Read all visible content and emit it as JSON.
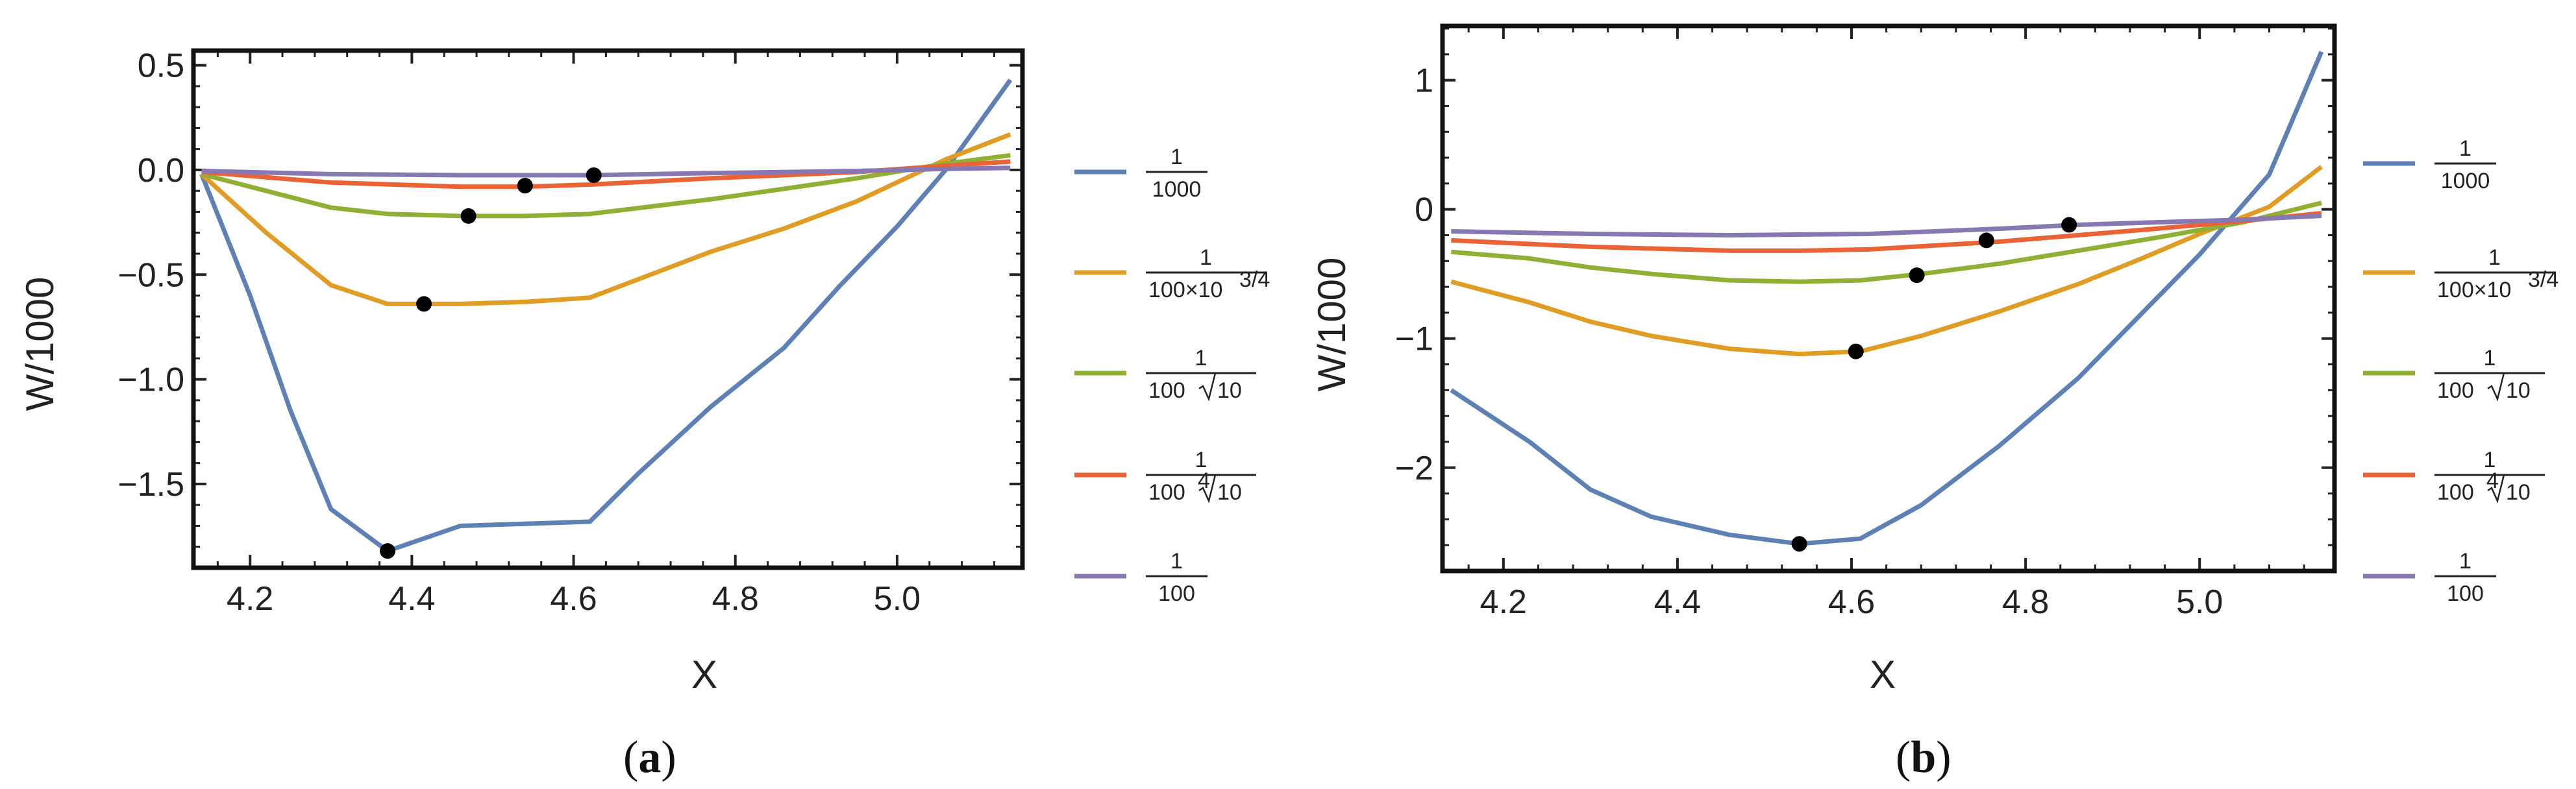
{
  "chart_data": [
    {
      "type": "line",
      "caption": "(a)",
      "caption_letter": "a",
      "xlabel": "X",
      "ylabel": "W/1000",
      "xlim": [
        4.13,
        5.155
      ],
      "ylim": [
        -1.9,
        0.57
      ],
      "xticks": [
        4.2,
        4.4,
        4.6,
        4.8,
        5.0
      ],
      "xtick_labels": [
        "4.2",
        "4.4",
        "4.6",
        "4.8",
        "5.0"
      ],
      "yticks": [
        0.5,
        0.0,
        -0.5,
        -1.0,
        -1.5
      ],
      "ytick_labels": [
        "0.5",
        "0.0",
        "−0.5",
        "−1.0",
        "−1.5"
      ],
      "series": [
        {
          "name": "1/1000",
          "color": "#5e81b5",
          "x": [
            4.14,
            4.2,
            4.25,
            4.3,
            4.37,
            4.46,
            4.54,
            4.62,
            4.68,
            4.77,
            4.86,
            4.93,
            5.0,
            5.06,
            5.14
          ],
          "y": [
            -0.02,
            -0.6,
            -1.15,
            -1.62,
            -1.82,
            -1.7,
            -1.69,
            -1.68,
            -1.45,
            -1.13,
            -0.85,
            -0.55,
            -0.27,
            0.0,
            0.43
          ],
          "marker": {
            "x": 4.37,
            "y": -1.82
          }
        },
        {
          "name": "1/(100×10^(3/4))",
          "color": "#e19c24",
          "x": [
            4.14,
            4.22,
            4.3,
            4.37,
            4.46,
            4.54,
            4.62,
            4.77,
            4.86,
            4.95,
            5.06,
            5.14
          ],
          "y": [
            -0.02,
            -0.3,
            -0.55,
            -0.64,
            -0.64,
            -0.63,
            -0.61,
            -0.39,
            -0.28,
            -0.15,
            0.05,
            0.17
          ],
          "marker": {
            "x": 4.415,
            "y": -0.64
          }
        },
        {
          "name": "1/(100√10)",
          "color": "#8fb032",
          "x": [
            4.14,
            4.22,
            4.3,
            4.37,
            4.46,
            4.54,
            4.62,
            4.77,
            4.86,
            4.95,
            5.06,
            5.14
          ],
          "y": [
            -0.02,
            -0.1,
            -0.18,
            -0.21,
            -0.22,
            -0.22,
            -0.21,
            -0.14,
            -0.09,
            -0.04,
            0.03,
            0.07
          ],
          "marker": {
            "x": 4.47,
            "y": -0.22
          }
        },
        {
          "name": "1/(100·10^(1/4))",
          "color": "#eb6235",
          "x": [
            4.14,
            4.3,
            4.46,
            4.54,
            4.62,
            4.77,
            4.95,
            5.06,
            5.14
          ],
          "y": [
            -0.01,
            -0.06,
            -0.08,
            -0.08,
            -0.07,
            -0.04,
            -0.01,
            0.02,
            0.04
          ],
          "marker": {
            "x": 4.54,
            "y": -0.075
          }
        },
        {
          "name": "1/100",
          "color": "#8778b3",
          "x": [
            4.14,
            4.3,
            4.46,
            4.62,
            4.77,
            4.95,
            5.06,
            5.14
          ],
          "y": [
            -0.005,
            -0.02,
            -0.025,
            -0.025,
            -0.015,
            -0.005,
            0.005,
            0.01
          ],
          "marker": {
            "x": 4.625,
            "y": -0.025
          }
        }
      ]
    },
    {
      "type": "line",
      "caption": "(b)",
      "caption_letter": "b",
      "xlabel": "X",
      "ylabel": "W/1000",
      "xlim": [
        4.13,
        5.155
      ],
      "ylim": [
        -2.8,
        1.42
      ],
      "xticks": [
        4.2,
        4.4,
        4.6,
        4.8,
        5.0
      ],
      "xtick_labels": [
        "4.2",
        "4.4",
        "4.6",
        "4.8",
        "5.0"
      ],
      "yticks": [
        1,
        0,
        -1,
        -2
      ],
      "ytick_labels": [
        "1",
        "0",
        "−1",
        "−2"
      ],
      "series": [
        {
          "name": "1/1000",
          "color": "#5e81b5",
          "x": [
            4.14,
            4.23,
            4.3,
            4.37,
            4.46,
            4.54,
            4.61,
            4.68,
            4.77,
            4.86,
            4.93,
            5.0,
            5.08,
            5.14
          ],
          "y": [
            -1.4,
            -1.8,
            -2.17,
            -2.38,
            -2.52,
            -2.59,
            -2.55,
            -2.29,
            -1.83,
            -1.31,
            -0.83,
            -0.35,
            0.27,
            1.22
          ],
          "marker": {
            "x": 4.54,
            "y": -2.59
          }
        },
        {
          "name": "1/(100×10^(3/4))",
          "color": "#e19c24",
          "x": [
            4.14,
            4.23,
            4.3,
            4.37,
            4.46,
            4.54,
            4.61,
            4.68,
            4.77,
            4.86,
            4.93,
            5.0,
            5.08,
            5.14
          ],
          "y": [
            -0.56,
            -0.72,
            -0.87,
            -0.98,
            -1.08,
            -1.12,
            -1.1,
            -0.98,
            -0.79,
            -0.58,
            -0.39,
            -0.19,
            0.02,
            0.33
          ],
          "marker": {
            "x": 4.605,
            "y": -1.1
          }
        },
        {
          "name": "1/(100√10)",
          "color": "#8fb032",
          "x": [
            4.14,
            4.23,
            4.3,
            4.37,
            4.46,
            4.54,
            4.61,
            4.68,
            4.77,
            4.86,
            4.95,
            5.05,
            5.14
          ],
          "y": [
            -0.33,
            -0.38,
            -0.45,
            -0.5,
            -0.55,
            -0.56,
            -0.55,
            -0.5,
            -0.42,
            -0.32,
            -0.22,
            -0.1,
            0.05
          ],
          "marker": {
            "x": 4.675,
            "y": -0.51
          }
        },
        {
          "name": "1/(100·10^(1/4))",
          "color": "#eb6235",
          "x": [
            4.14,
            4.3,
            4.46,
            4.54,
            4.62,
            4.77,
            4.86,
            4.95,
            5.05,
            5.14
          ],
          "y": [
            -0.24,
            -0.29,
            -0.32,
            -0.32,
            -0.31,
            -0.25,
            -0.2,
            -0.15,
            -0.09,
            -0.03
          ],
          "marker": {
            "x": 4.755,
            "y": -0.24
          }
        },
        {
          "name": "1/100",
          "color": "#8778b3",
          "x": [
            4.14,
            4.3,
            4.46,
            4.62,
            4.77,
            4.86,
            4.95,
            5.05,
            5.14
          ],
          "y": [
            -0.17,
            -0.19,
            -0.2,
            -0.19,
            -0.15,
            -0.12,
            -0.1,
            -0.08,
            -0.05
          ],
          "marker": {
            "x": 4.85,
            "y": -0.12
          }
        }
      ]
    }
  ],
  "legend": {
    "entries": [
      {
        "numerator": "1",
        "denominator": "1000",
        "color": "#5e81b5"
      },
      {
        "numerator": "1",
        "denominator": "100×10",
        "exp": "3/4",
        "color": "#e19c24"
      },
      {
        "numerator": "1",
        "denominator": "100",
        "radical": "10",
        "color": "#8fb032"
      },
      {
        "numerator": "1",
        "denominator": "100",
        "radical": "10",
        "root_index": "4",
        "color": "#eb6235"
      },
      {
        "numerator": "1",
        "denominator": "100",
        "color": "#8778b3"
      }
    ]
  }
}
